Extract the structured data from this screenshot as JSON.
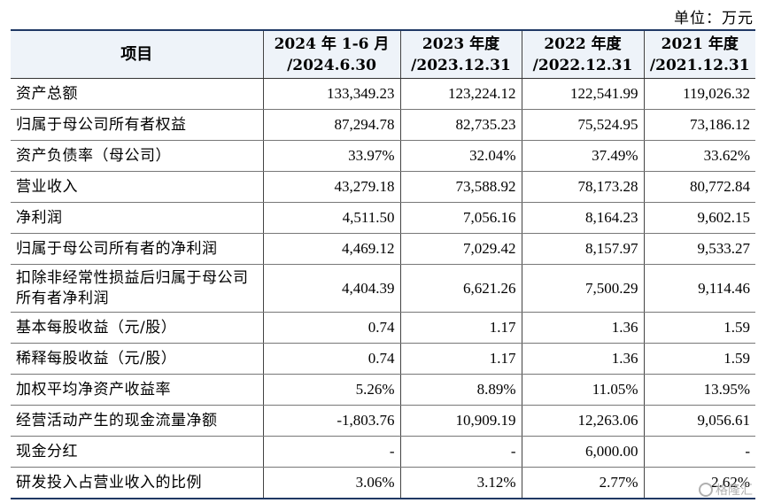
{
  "unit_label": "单位：万元",
  "table": {
    "header": {
      "item": "项目",
      "col1_line1": "2024 年 1-6 月",
      "col1_line2": "/2024.6.30",
      "col2_line1": "2023 年度",
      "col2_line2": "/2023.12.31",
      "col3_line1": "2022 年度",
      "col3_line2": "/2022.12.31",
      "col4_line1": "2021 年度",
      "col4_line2": "/2021.12.31"
    },
    "rows": [
      {
        "label": "资产总额",
        "v1": "133,349.23",
        "v2": "123,224.12",
        "v3": "122,541.99",
        "v4": "119,026.32"
      },
      {
        "label": "归属于母公司所有者权益",
        "v1": "87,294.78",
        "v2": "82,735.23",
        "v3": "75,524.95",
        "v4": "73,186.12"
      },
      {
        "label": "资产负债率（母公司）",
        "v1": "33.97%",
        "v2": "32.04%",
        "v3": "37.49%",
        "v4": "33.62%"
      },
      {
        "label": "营业收入",
        "v1": "43,279.18",
        "v2": "73,588.92",
        "v3": "78,173.28",
        "v4": "80,772.84"
      },
      {
        "label": "净利润",
        "v1": "4,511.50",
        "v2": "7,056.16",
        "v3": "8,164.23",
        "v4": "9,602.15"
      },
      {
        "label": "归属于母公司所有者的净利润",
        "v1": "4,469.12",
        "v2": "7,029.42",
        "v3": "8,157.97",
        "v4": "9,533.27"
      },
      {
        "label": "扣除非经常性损益后归属于母公司所有者净利润",
        "v1": "4,404.39",
        "v2": "6,621.26",
        "v3": "7,500.29",
        "v4": "9,114.46"
      },
      {
        "label": "基本每股收益（元/股）",
        "v1": "0.74",
        "v2": "1.17",
        "v3": "1.36",
        "v4": "1.59"
      },
      {
        "label": "稀释每股收益（元/股）",
        "v1": "0.74",
        "v2": "1.17",
        "v3": "1.36",
        "v4": "1.59"
      },
      {
        "label": "加权平均净资产收益率",
        "v1": "5.26%",
        "v2": "8.89%",
        "v3": "11.05%",
        "v4": "13.95%"
      },
      {
        "label": "经营活动产生的现金流量净额",
        "v1": "-1,803.76",
        "v2": "10,909.19",
        "v3": "12,263.06",
        "v4": "9,056.61"
      },
      {
        "label": "现金分红",
        "v1": "-",
        "v2": "-",
        "v3": "6,000.00",
        "v4": "-"
      },
      {
        "label": "研发投入占营业收入的比例",
        "v1": "3.06%",
        "v2": "3.12%",
        "v3": "2.77%",
        "v4": "2.62%"
      }
    ]
  },
  "watermark": {
    "text": "格隆汇",
    "icon": "logo-icon"
  }
}
